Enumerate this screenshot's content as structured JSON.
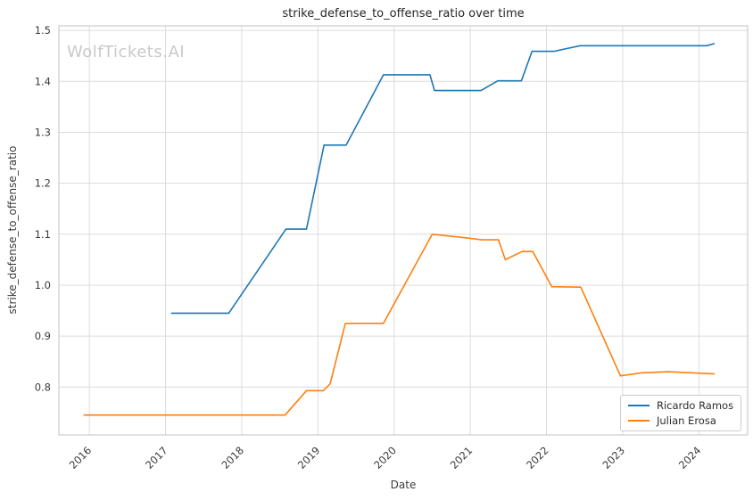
{
  "watermark": "WolfTickets.AI",
  "style_colors": {
    "grid": "#dcdcdc",
    "spine": "#cccccc",
    "tick_text": "#3b3b3b",
    "title_text": "#262626",
    "watermark": "#c9c9c9"
  },
  "chart_data": {
    "type": "line",
    "title": "strike_defense_to_offense_ratio over time",
    "xlabel": "Date",
    "ylabel": "strike_defense_to_offense_ratio",
    "grid": true,
    "legend_position": "lower right",
    "xlim": [
      2015.6,
      2024.64
    ],
    "ylim": [
      0.706,
      1.509
    ],
    "x_ticks": [
      {
        "value": 2016,
        "label": "2016"
      },
      {
        "value": 2017,
        "label": "2017"
      },
      {
        "value": 2018,
        "label": "2018"
      },
      {
        "value": 2019,
        "label": "2019"
      },
      {
        "value": 2020,
        "label": "2020"
      },
      {
        "value": 2021,
        "label": "2021"
      },
      {
        "value": 2022,
        "label": "2022"
      },
      {
        "value": 2023,
        "label": "2023"
      },
      {
        "value": 2024,
        "label": "2024"
      }
    ],
    "y_ticks": [
      {
        "value": 0.8,
        "label": "0.8"
      },
      {
        "value": 0.9,
        "label": "0.9"
      },
      {
        "value": 1.0,
        "label": "1.0"
      },
      {
        "value": 1.1,
        "label": "1.1"
      },
      {
        "value": 1.2,
        "label": "1.2"
      },
      {
        "value": 1.3,
        "label": "1.3"
      },
      {
        "value": 1.4,
        "label": "1.4"
      },
      {
        "value": 1.5,
        "label": "1.5"
      }
    ],
    "series": [
      {
        "name": "Ricardo Ramos",
        "color": "#1f77b4",
        "points": [
          [
            2017.08,
            0.945
          ],
          [
            2017.83,
            0.945
          ],
          [
            2018.58,
            1.11
          ],
          [
            2018.85,
            1.11
          ],
          [
            2019.08,
            1.275
          ],
          [
            2019.37,
            1.275
          ],
          [
            2019.86,
            1.413
          ],
          [
            2020.47,
            1.413
          ],
          [
            2020.53,
            1.382
          ],
          [
            2021.14,
            1.382
          ],
          [
            2021.36,
            1.401
          ],
          [
            2021.67,
            1.401
          ],
          [
            2021.81,
            1.459
          ],
          [
            2022.1,
            1.459
          ],
          [
            2022.44,
            1.47
          ],
          [
            2024.1,
            1.47
          ],
          [
            2024.2,
            1.474
          ]
        ]
      },
      {
        "name": "Julian Erosa",
        "color": "#ff7f0e",
        "points": [
          [
            2015.93,
            0.745
          ],
          [
            2018.57,
            0.745
          ],
          [
            2018.85,
            0.793
          ],
          [
            2019.07,
            0.793
          ],
          [
            2019.16,
            0.806
          ],
          [
            2019.36,
            0.925
          ],
          [
            2019.86,
            0.925
          ],
          [
            2020.5,
            1.1
          ],
          [
            2021.0,
            1.092
          ],
          [
            2021.15,
            1.089
          ],
          [
            2021.37,
            1.089
          ],
          [
            2021.46,
            1.05
          ],
          [
            2021.68,
            1.066
          ],
          [
            2021.82,
            1.066
          ],
          [
            2022.07,
            0.997
          ],
          [
            2022.45,
            0.996
          ],
          [
            2022.97,
            0.822
          ],
          [
            2023.25,
            0.828
          ],
          [
            2023.6,
            0.83
          ],
          [
            2024.2,
            0.826
          ]
        ]
      }
    ]
  }
}
